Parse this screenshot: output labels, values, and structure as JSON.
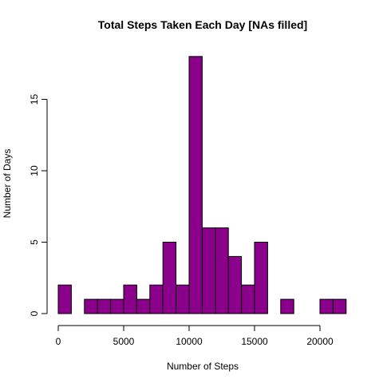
{
  "chart_data": {
    "type": "bar",
    "title": "Total Steps Taken Each Day [NAs filled]",
    "xlabel": "Number of Steps",
    "ylabel": "Number of Days",
    "bin_width": 1000,
    "bin_edges": [
      0,
      1000,
      2000,
      3000,
      4000,
      5000,
      6000,
      7000,
      8000,
      9000,
      10000,
      11000,
      12000,
      13000,
      14000,
      15000,
      16000,
      17000,
      18000,
      19000,
      20000,
      21000,
      22000
    ],
    "values": [
      2,
      0,
      1,
      1,
      1,
      2,
      1,
      2,
      5,
      2,
      18,
      6,
      6,
      4,
      2,
      5,
      0,
      1,
      0,
      0,
      1,
      1
    ],
    "xlim": [
      0,
      22000
    ],
    "ylim": [
      0,
      18
    ],
    "x_ticks": [
      0,
      5000,
      10000,
      15000,
      20000
    ],
    "x_tick_labels": [
      "0",
      "5000",
      "10000",
      "15000",
      "20000"
    ],
    "y_ticks": [
      0,
      5,
      10,
      15
    ],
    "y_tick_labels": [
      "0",
      "5",
      "10",
      "15"
    ],
    "bar_color": "#8B008B",
    "border_color": "#000000",
    "grid": false,
    "legend": "none"
  }
}
